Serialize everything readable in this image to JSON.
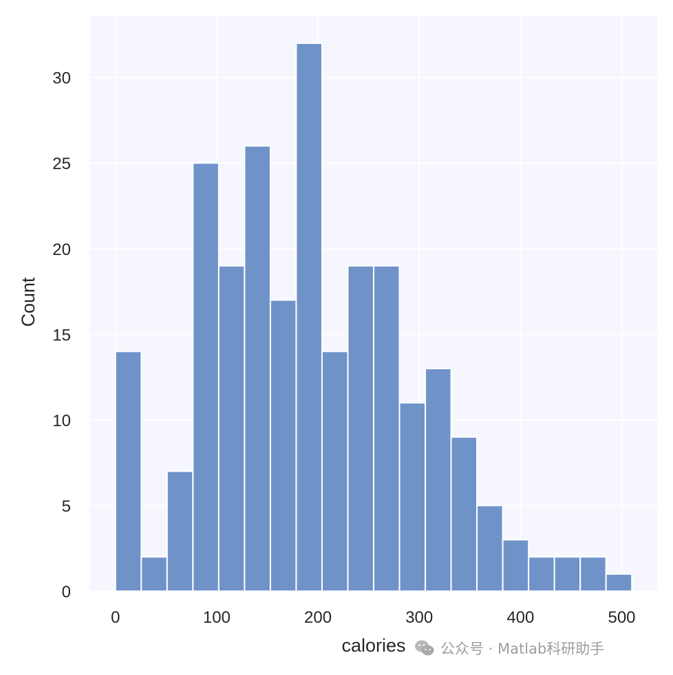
{
  "chart_data": {
    "type": "bar",
    "subtype": "histogram",
    "xlabel": "calories",
    "ylabel": "Count",
    "xlim": [
      -25,
      535
    ],
    "ylim": [
      0,
      33.6
    ],
    "grid": true,
    "colors": {
      "bar": "#6f93c9",
      "plot_background": "#f5f6fe",
      "grid": "#ffffff"
    },
    "x_ticks": [
      0,
      100,
      200,
      300,
      400,
      500
    ],
    "y_ticks": [
      0,
      5,
      10,
      15,
      20,
      25,
      30
    ],
    "bins": [
      {
        "x0": 0,
        "x1": 25.5,
        "count": 14
      },
      {
        "x0": 25.5,
        "x1": 51,
        "count": 2
      },
      {
        "x0": 51,
        "x1": 76.5,
        "count": 7
      },
      {
        "x0": 76.5,
        "x1": 102,
        "count": 25
      },
      {
        "x0": 102,
        "x1": 127.5,
        "count": 19
      },
      {
        "x0": 127.5,
        "x1": 153,
        "count": 26
      },
      {
        "x0": 153,
        "x1": 178.5,
        "count": 17
      },
      {
        "x0": 178.5,
        "x1": 204,
        "count": 32
      },
      {
        "x0": 204,
        "x1": 229.5,
        "count": 14
      },
      {
        "x0": 229.5,
        "x1": 255,
        "count": 19
      },
      {
        "x0": 255,
        "x1": 280.5,
        "count": 19
      },
      {
        "x0": 280.5,
        "x1": 306,
        "count": 11
      },
      {
        "x0": 306,
        "x1": 331.5,
        "count": 13
      },
      {
        "x0": 331.5,
        "x1": 357,
        "count": 9
      },
      {
        "x0": 357,
        "x1": 382.5,
        "count": 5
      },
      {
        "x0": 382.5,
        "x1": 408,
        "count": 3
      },
      {
        "x0": 408,
        "x1": 433.5,
        "count": 2
      },
      {
        "x0": 433.5,
        "x1": 459,
        "count": 2
      },
      {
        "x0": 459,
        "x1": 484.5,
        "count": 2
      },
      {
        "x0": 484.5,
        "x1": 510,
        "count": 1
      }
    ]
  },
  "watermark": {
    "text": "公众号 · Matlab科研助手",
    "icon": "wechat-icon"
  }
}
